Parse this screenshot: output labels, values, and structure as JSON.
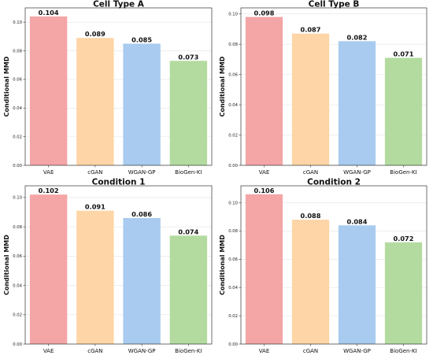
{
  "chart_data": [
    {
      "type": "bar",
      "title": "Cell Type A",
      "ylabel": "Conditional MMD",
      "categories": [
        "VAE",
        "cGAN",
        "WGAN-GP",
        "BioGen-KI"
      ],
      "values": [
        0.104,
        0.089,
        0.085,
        0.073
      ],
      "value_labels": [
        "0.104",
        "0.089",
        "0.085",
        "0.073"
      ],
      "ylim": [
        0,
        0.11
      ],
      "yticks": [
        "0.00",
        "0.02",
        "0.04",
        "0.06",
        "0.08",
        "0.10"
      ],
      "grid": true
    },
    {
      "type": "bar",
      "title": "Cell Type B",
      "ylabel": "Conditional MMD",
      "categories": [
        "VAE",
        "cGAN",
        "WGAN-GP",
        "BioGen-KI"
      ],
      "values": [
        0.098,
        0.087,
        0.082,
        0.071
      ],
      "value_labels": [
        "0.098",
        "0.087",
        "0.082",
        "0.071"
      ],
      "ylim": [
        0,
        0.104
      ],
      "yticks": [
        "0.00",
        "0.02",
        "0.04",
        "0.06",
        "0.08",
        "0.10"
      ],
      "grid": true
    },
    {
      "type": "bar",
      "title": "Condition 1",
      "ylabel": "Conditional MMD",
      "categories": [
        "VAE",
        "cGAN",
        "WGAN-GP",
        "BioGen-KI"
      ],
      "values": [
        0.102,
        0.091,
        0.086,
        0.074
      ],
      "value_labels": [
        "0.102",
        "0.091",
        "0.086",
        "0.074"
      ],
      "ylim": [
        0,
        0.108
      ],
      "yticks": [
        "0.00",
        "0.02",
        "0.04",
        "0.06",
        "0.08",
        "0.10"
      ],
      "grid": true
    },
    {
      "type": "bar",
      "title": "Condition 2",
      "ylabel": "Conditional MMD",
      "categories": [
        "VAE",
        "cGAN",
        "WGAN-GP",
        "BioGen-KI"
      ],
      "values": [
        0.106,
        0.088,
        0.084,
        0.072
      ],
      "value_labels": [
        "0.106",
        "0.088",
        "0.084",
        "0.072"
      ],
      "ylim": [
        0,
        0.112
      ],
      "yticks": [
        "0.00",
        "0.02",
        "0.04",
        "0.06",
        "0.08",
        "0.10"
      ],
      "grid": true
    }
  ],
  "colors": {
    "bars": [
      "#f4a5a6",
      "#fdd5a6",
      "#a8cbef",
      "#b3dba0"
    ],
    "grid": "#e4e4e4",
    "axis": "#333333"
  }
}
